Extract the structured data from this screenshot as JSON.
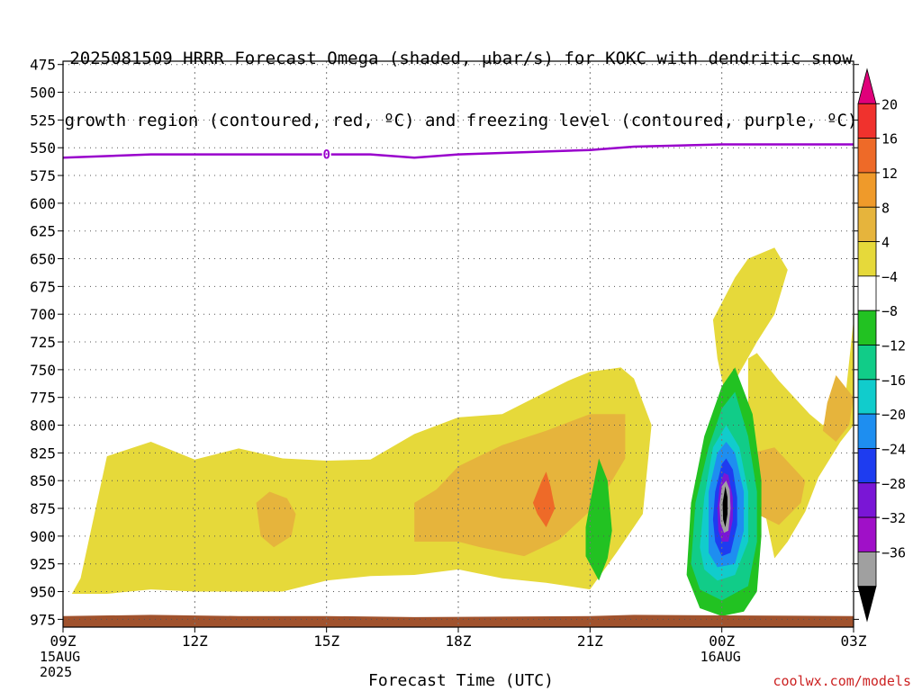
{
  "title_line1": "2025081509 HRRR Forecast Omega (shaded, μbar/s) for KOKC with dendritic snow",
  "title_line2": "growth region (contoured, red, ºC) and freezing level (contoured, purple, ºC)",
  "credit": "coolwx.com/models",
  "chart_data": {
    "type": "area",
    "xlabel": "Forecast Time (UTC)",
    "ylabel": "",
    "x_ticks": [
      {
        "label": "09Z",
        "sub": [
          "15AUG",
          "2025"
        ]
      },
      {
        "label": "12Z",
        "sub": []
      },
      {
        "label": "15Z",
        "sub": []
      },
      {
        "label": "18Z",
        "sub": []
      },
      {
        "label": "21Z",
        "sub": []
      },
      {
        "label": "00Z",
        "sub": [
          "16AUG"
        ]
      },
      {
        "label": "03Z",
        "sub": []
      }
    ],
    "x_range_hours": [
      0,
      18
    ],
    "y_ticks": [
      475,
      500,
      525,
      550,
      575,
      600,
      625,
      650,
      675,
      700,
      725,
      750,
      775,
      800,
      825,
      850,
      875,
      900,
      925,
      950,
      975
    ],
    "y_axis": "pressure (hPa), reversed",
    "freezing_level": {
      "label": "0",
      "color": "#9900cc",
      "x_hours": [
        0,
        2,
        4,
        6,
        7,
        8,
        9,
        12,
        13,
        15,
        18
      ],
      "pressure": [
        559,
        556,
        556,
        556,
        556,
        559,
        556,
        552,
        549,
        547,
        547
      ]
    },
    "colorbar": {
      "labels": [
        "20",
        "16",
        "12",
        "8",
        "4",
        "−4",
        "−8",
        "−12",
        "−16",
        "−20",
        "−24",
        "−28",
        "−32",
        "−36"
      ],
      "colors": [
        "#e0007a",
        "#f0322d",
        "#ee6a28",
        "#ef9a2a",
        "#e6b43c",
        "#e6d93a",
        "#ffffff",
        "#22c222",
        "#11cc88",
        "#11cccc",
        "#1e8ef0",
        "#1e3cf0",
        "#7a16d6",
        "#a010c8",
        "#a0a0a0",
        "#000000"
      ]
    },
    "omega_regions": [
      {
        "name": "rising-left",
        "value": 4,
        "color": "#e6d93a",
        "poly": [
          [
            0.2,
            952
          ],
          [
            0.4,
            938
          ],
          [
            1,
            828
          ],
          [
            2,
            815
          ],
          [
            3,
            831
          ],
          [
            4,
            821
          ],
          [
            5,
            830
          ],
          [
            6,
            832
          ],
          [
            7,
            831
          ],
          [
            8,
            808
          ],
          [
            9,
            793
          ],
          [
            10,
            790
          ],
          [
            11,
            770
          ],
          [
            11.5,
            760
          ],
          [
            12,
            752
          ],
          [
            12.7,
            748
          ],
          [
            13,
            758
          ],
          [
            13.4,
            800
          ],
          [
            13.2,
            880
          ],
          [
            12.6,
            915
          ],
          [
            12,
            948
          ],
          [
            11,
            942
          ],
          [
            10,
            938
          ],
          [
            9,
            930
          ],
          [
            8,
            935
          ],
          [
            7,
            936
          ],
          [
            6,
            940
          ],
          [
            5,
            950
          ],
          [
            4,
            950
          ],
          [
            3,
            950
          ],
          [
            2,
            948
          ],
          [
            1,
            952
          ],
          [
            0.2,
            952
          ]
        ]
      },
      {
        "name": "core-a",
        "value": 8,
        "color": "#e6b43c",
        "poly": [
          [
            8,
            870
          ],
          [
            8.5,
            858
          ],
          [
            9,
            837
          ],
          [
            10,
            818
          ],
          [
            11,
            805
          ],
          [
            12,
            790
          ],
          [
            12.8,
            790
          ],
          [
            12.8,
            830
          ],
          [
            12.2,
            870
          ],
          [
            11.3,
            903
          ],
          [
            10.5,
            918
          ],
          [
            9.5,
            910
          ],
          [
            9,
            905
          ],
          [
            8,
            905
          ]
        ]
      },
      {
        "name": "core-b",
        "value": 12,
        "color": "#ee6a28",
        "poly": [
          [
            10.7,
            870
          ],
          [
            10.9,
            850
          ],
          [
            11,
            842
          ],
          [
            11.1,
            855
          ],
          [
            11.2,
            875
          ],
          [
            11,
            892
          ],
          [
            10.8,
            880
          ]
        ]
      },
      {
        "name": "core-c",
        "value": 8,
        "color": "#e6b43c",
        "poly": [
          [
            4.4,
            870
          ],
          [
            4.7,
            860
          ],
          [
            5.1,
            866
          ],
          [
            5.3,
            880
          ],
          [
            5.2,
            900
          ],
          [
            4.8,
            910
          ],
          [
            4.5,
            900
          ]
        ]
      },
      {
        "name": "upper-right",
        "value": 4,
        "color": "#e6d93a",
        "poly": [
          [
            14.8,
            705
          ],
          [
            15.3,
            667
          ],
          [
            15.6,
            650
          ],
          [
            16.2,
            640
          ],
          [
            16.5,
            660
          ],
          [
            16.2,
            700
          ],
          [
            15.8,
            725
          ],
          [
            15.3,
            760
          ],
          [
            15.2,
            795
          ],
          [
            14.9,
            740
          ]
        ]
      },
      {
        "name": "right",
        "value": 4,
        "color": "#e6d93a",
        "poly": [
          [
            15.8,
            735
          ],
          [
            16.3,
            760
          ],
          [
            17,
            790
          ],
          [
            17.3,
            800
          ],
          [
            17.8,
            780
          ],
          [
            18,
            705
          ],
          [
            18,
            800
          ],
          [
            17.7,
            815
          ],
          [
            17.2,
            847
          ],
          [
            16.9,
            878
          ],
          [
            16.5,
            905
          ],
          [
            16.2,
            920
          ],
          [
            16,
            882
          ],
          [
            15.6,
            865
          ],
          [
            15.6,
            800
          ],
          [
            15.6,
            740
          ]
        ]
      },
      {
        "name": "right-core",
        "value": 8,
        "color": "#e6b43c",
        "poly": [
          [
            15.7,
            825
          ],
          [
            16.2,
            820
          ],
          [
            16.9,
            850
          ],
          [
            16.8,
            870
          ],
          [
            16.3,
            890
          ],
          [
            15.8,
            880
          ]
        ]
      },
      {
        "name": "right-core2",
        "value": 8,
        "color": "#e6b43c",
        "poly": [
          [
            17.4,
            780
          ],
          [
            17.6,
            755
          ],
          [
            18,
            775
          ],
          [
            17.9,
            800
          ],
          [
            17.6,
            815
          ],
          [
            17.3,
            805
          ]
        ]
      },
      {
        "name": "sink-a",
        "value": -4,
        "color": "#22c222",
        "poly": [
          [
            11.9,
            892
          ],
          [
            12,
            870
          ],
          [
            12.2,
            830
          ],
          [
            12.4,
            850
          ],
          [
            12.5,
            895
          ],
          [
            12.4,
            920
          ],
          [
            12.2,
            940
          ],
          [
            11.9,
            918
          ]
        ]
      },
      {
        "name": "sink-b",
        "value": -4,
        "color": "#22c222",
        "poly": [
          [
            14.2,
            935
          ],
          [
            14.3,
            870
          ],
          [
            14.6,
            810
          ],
          [
            15,
            765
          ],
          [
            15.3,
            748
          ],
          [
            15.7,
            790
          ],
          [
            15.9,
            850
          ],
          [
            15.9,
            900
          ],
          [
            15.8,
            950
          ],
          [
            15.5,
            968
          ],
          [
            15,
            972
          ],
          [
            14.5,
            965
          ]
        ]
      },
      {
        "name": "sink-c",
        "value": -8,
        "color": "#11cc88",
        "poly": [
          [
            14.3,
            925
          ],
          [
            14.4,
            870
          ],
          [
            14.7,
            820
          ],
          [
            15,
            785
          ],
          [
            15.3,
            770
          ],
          [
            15.6,
            810
          ],
          [
            15.8,
            860
          ],
          [
            15.8,
            905
          ],
          [
            15.6,
            945
          ],
          [
            15,
            958
          ],
          [
            14.5,
            948
          ]
        ]
      },
      {
        "name": "sink-d",
        "value": -12,
        "color": "#11cccc",
        "poly": [
          [
            14.5,
            910
          ],
          [
            14.6,
            865
          ],
          [
            14.8,
            820
          ],
          [
            15.1,
            800
          ],
          [
            15.4,
            820
          ],
          [
            15.6,
            860
          ],
          [
            15.6,
            905
          ],
          [
            15.3,
            935
          ],
          [
            14.9,
            940
          ],
          [
            14.6,
            930
          ]
        ]
      },
      {
        "name": "sink-e",
        "value": -16,
        "color": "#1e8ef0",
        "poly": [
          [
            14.7,
            895
          ],
          [
            14.7,
            860
          ],
          [
            14.9,
            825
          ],
          [
            15.1,
            815
          ],
          [
            15.3,
            825
          ],
          [
            15.5,
            860
          ],
          [
            15.5,
            895
          ],
          [
            15.3,
            925
          ],
          [
            14.9,
            928
          ],
          [
            14.7,
            915
          ]
        ]
      },
      {
        "name": "sink-f",
        "value": -24,
        "color": "#1e3cf0",
        "poly": [
          [
            14.8,
            885
          ],
          [
            14.85,
            860
          ],
          [
            15,
            835
          ],
          [
            15.1,
            830
          ],
          [
            15.25,
            840
          ],
          [
            15.35,
            865
          ],
          [
            15.35,
            890
          ],
          [
            15.2,
            915
          ],
          [
            15,
            918
          ],
          [
            14.85,
            905
          ]
        ]
      },
      {
        "name": "sink-g",
        "value": -28,
        "color": "#7a16d6",
        "poly": [
          [
            14.9,
            875
          ],
          [
            14.95,
            855
          ],
          [
            15.05,
            843
          ],
          [
            15.15,
            845
          ],
          [
            15.25,
            865
          ],
          [
            15.25,
            885
          ],
          [
            15.15,
            905
          ],
          [
            15,
            905
          ],
          [
            14.92,
            895
          ]
        ]
      },
      {
        "name": "sink-h",
        "value": -32,
        "color": "#a0a0a0",
        "poly": [
          [
            14.95,
            872
          ],
          [
            15.0,
            855
          ],
          [
            15.1,
            850
          ],
          [
            15.18,
            858
          ],
          [
            15.2,
            875
          ],
          [
            15.15,
            895
          ],
          [
            15.05,
            897
          ],
          [
            14.97,
            888
          ]
        ]
      },
      {
        "name": "sink-i",
        "value": -36,
        "color": "#000000",
        "poly": [
          [
            15.02,
            870
          ],
          [
            15.08,
            855
          ],
          [
            15.13,
            865
          ],
          [
            15.13,
            880
          ],
          [
            15.08,
            892
          ],
          [
            15.03,
            885
          ]
        ]
      }
    ],
    "surface": {
      "color": "#a0522d",
      "x_hours": [
        0,
        2,
        4,
        6,
        8,
        12,
        13,
        18
      ],
      "pressure": [
        972,
        971,
        972,
        972,
        973,
        972,
        971,
        972
      ]
    }
  }
}
